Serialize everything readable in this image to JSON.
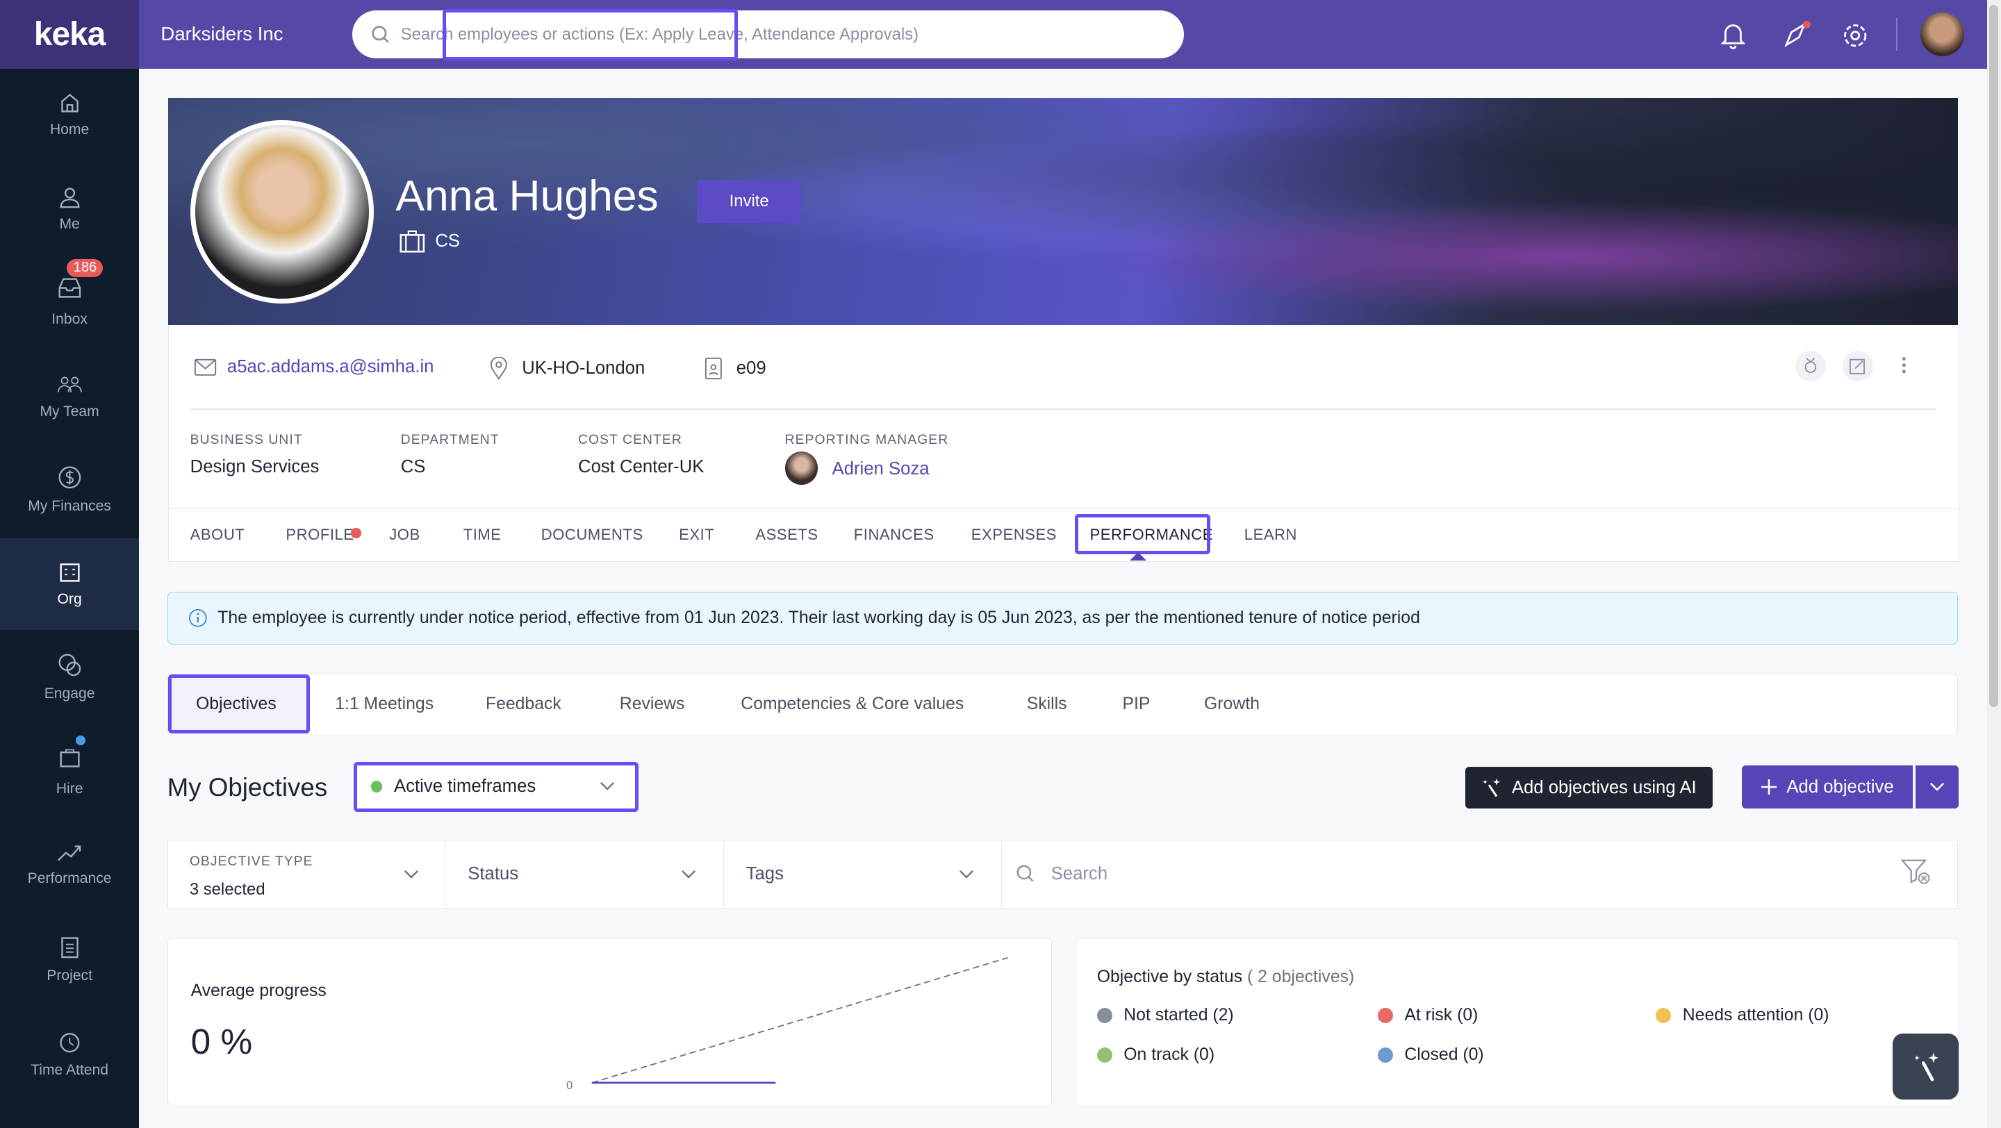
{
  "topbar": {
    "logo": "keka",
    "company": "Darksiders Inc",
    "search_placeholder": "Search employees or actions (Ex: Apply Leave, Attendance Approvals)"
  },
  "sidebar": {
    "items": [
      {
        "label": "Home",
        "icon": "home-icon"
      },
      {
        "label": "Me",
        "icon": "user-icon"
      },
      {
        "label": "Inbox",
        "icon": "inbox-icon",
        "badge": "186"
      },
      {
        "label": "My Team",
        "icon": "team-icon"
      },
      {
        "label": "My Finances",
        "icon": "dollar-icon"
      },
      {
        "label": "Org",
        "icon": "org-icon",
        "active": true
      },
      {
        "label": "Engage",
        "icon": "engage-icon"
      },
      {
        "label": "Hire",
        "icon": "briefcase-icon"
      },
      {
        "label": "Performance",
        "icon": "trend-icon"
      },
      {
        "label": "Project",
        "icon": "clipboard-icon"
      },
      {
        "label": "Time Attend",
        "icon": "clock-icon"
      }
    ]
  },
  "profile": {
    "name": "Anna Hughes",
    "invite_label": "Invite",
    "department_short": "CS",
    "email": "a5ac.addams.a@simha.in",
    "location": "UK-HO-London",
    "employee_id": "e09",
    "fields": [
      {
        "label": "BUSINESS UNIT",
        "value": "Design Services"
      },
      {
        "label": "DEPARTMENT",
        "value": "CS"
      },
      {
        "label": "COST CENTER",
        "value": "Cost Center-UK"
      },
      {
        "label": "REPORTING MANAGER",
        "value": "Adrien Soza"
      }
    ]
  },
  "tabs": [
    "ABOUT",
    "PROFILE",
    "JOB",
    "TIME",
    "DOCUMENTS",
    "EXIT",
    "ASSETS",
    "FINANCES",
    "EXPENSES",
    "PERFORMANCE",
    "LEARN"
  ],
  "active_tab": "PERFORMANCE",
  "notice": "The employee is currently under notice period, effective from 01 Jun 2023. Their last working day is 05 Jun 2023, as per the mentioned tenure of notice period",
  "subtabs": [
    "Objectives",
    "1:1 Meetings",
    "Feedback",
    "Reviews",
    "Competencies & Core values",
    "Skills",
    "PIP",
    "Growth"
  ],
  "objectives": {
    "title": "My Objectives",
    "timeframe": "Active timeframes",
    "ai_button": "Add objectives using AI",
    "add_button": "Add objective",
    "filters": {
      "type_label": "OBJECTIVE TYPE",
      "type_value": "3 selected",
      "status": "Status",
      "tags": "Tags",
      "search_placeholder": "Search"
    },
    "avg_label": "Average progress",
    "avg_value": "0 %",
    "avg_axis_label": "0",
    "status_title": "Objective by status",
    "status_count": "( 2 objectives)",
    "statuses": [
      {
        "label": "Not started (2)",
        "color": "#868d9c"
      },
      {
        "label": "At risk (0)",
        "color": "#e86a62"
      },
      {
        "label": "Needs attention (0)",
        "color": "#f2c14e"
      },
      {
        "label": "On track (0)",
        "color": "#92c074"
      },
      {
        "label": "Closed (0)",
        "color": "#6b9bd2"
      }
    ]
  }
}
